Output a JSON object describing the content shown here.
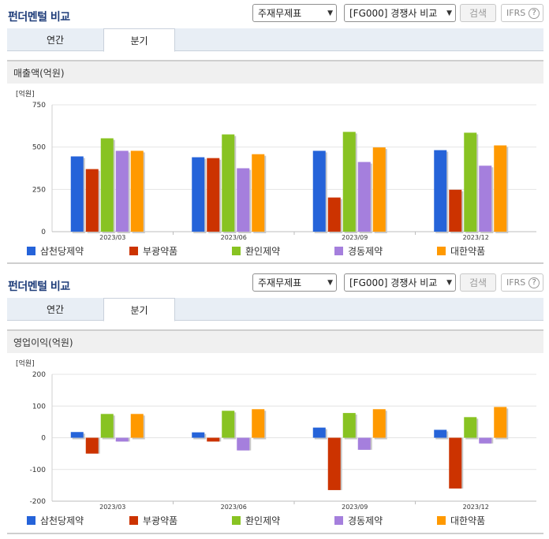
{
  "panels": [
    {
      "title": "펀더멘털 비교",
      "select_statement": "주재무제표",
      "select_compare": "[FG000] 경쟁사 비교",
      "search_label": "검색",
      "ifrs_label": "IFRS",
      "ifrs_help": "?",
      "tabs": [
        "연간",
        "분기"
      ],
      "section_title": "매출액(억원)"
    },
    {
      "title": "펀더멘털 비교",
      "select_statement": "주재무제표",
      "select_compare": "[FG000] 경쟁사 비교",
      "search_label": "검색",
      "ifrs_label": "IFRS",
      "ifrs_help": "?",
      "tabs": [
        "연간",
        "분기"
      ],
      "section_title": "영업이익(억원)"
    }
  ],
  "colors": [
    "#2563d9",
    "#cc3300",
    "#88c322",
    "#a57fdd",
    "#ff9900"
  ],
  "chart_data": [
    {
      "type": "bar",
      "unit_label": "[억원]",
      "categories": [
        "2023/03",
        "2023/06",
        "2023/09",
        "2023/12"
      ],
      "ylim": [
        0,
        750
      ],
      "yticks": [
        0,
        250,
        500,
        750
      ],
      "grid": true,
      "legend": "bottom",
      "series": [
        {
          "name": "삼천당제약",
          "values": [
            445,
            440,
            478,
            482
          ]
        },
        {
          "name": "부광약품",
          "values": [
            370,
            435,
            202,
            248
          ]
        },
        {
          "name": "환인제약",
          "values": [
            552,
            575,
            590,
            585
          ]
        },
        {
          "name": "경동제약",
          "values": [
            478,
            375,
            412,
            390
          ]
        },
        {
          "name": "대한약품",
          "values": [
            478,
            458,
            498,
            510
          ]
        }
      ]
    },
    {
      "type": "bar",
      "unit_label": "[억원]",
      "categories": [
        "2023/03",
        "2023/06",
        "2023/09",
        "2023/12"
      ],
      "ylim": [
        -200,
        200
      ],
      "yticks": [
        -200,
        -100,
        0,
        100,
        200
      ],
      "grid": true,
      "legend": "bottom",
      "series": [
        {
          "name": "삼천당제약",
          "values": [
            18,
            17,
            32,
            25
          ]
        },
        {
          "name": "부광약품",
          "values": [
            -50,
            -12,
            -165,
            -160
          ]
        },
        {
          "name": "환인제약",
          "values": [
            75,
            85,
            78,
            65
          ]
        },
        {
          "name": "경동제약",
          "values": [
            -12,
            -40,
            -38,
            -18
          ]
        },
        {
          "name": "대한약품",
          "values": [
            75,
            90,
            90,
            97
          ]
        }
      ]
    }
  ]
}
